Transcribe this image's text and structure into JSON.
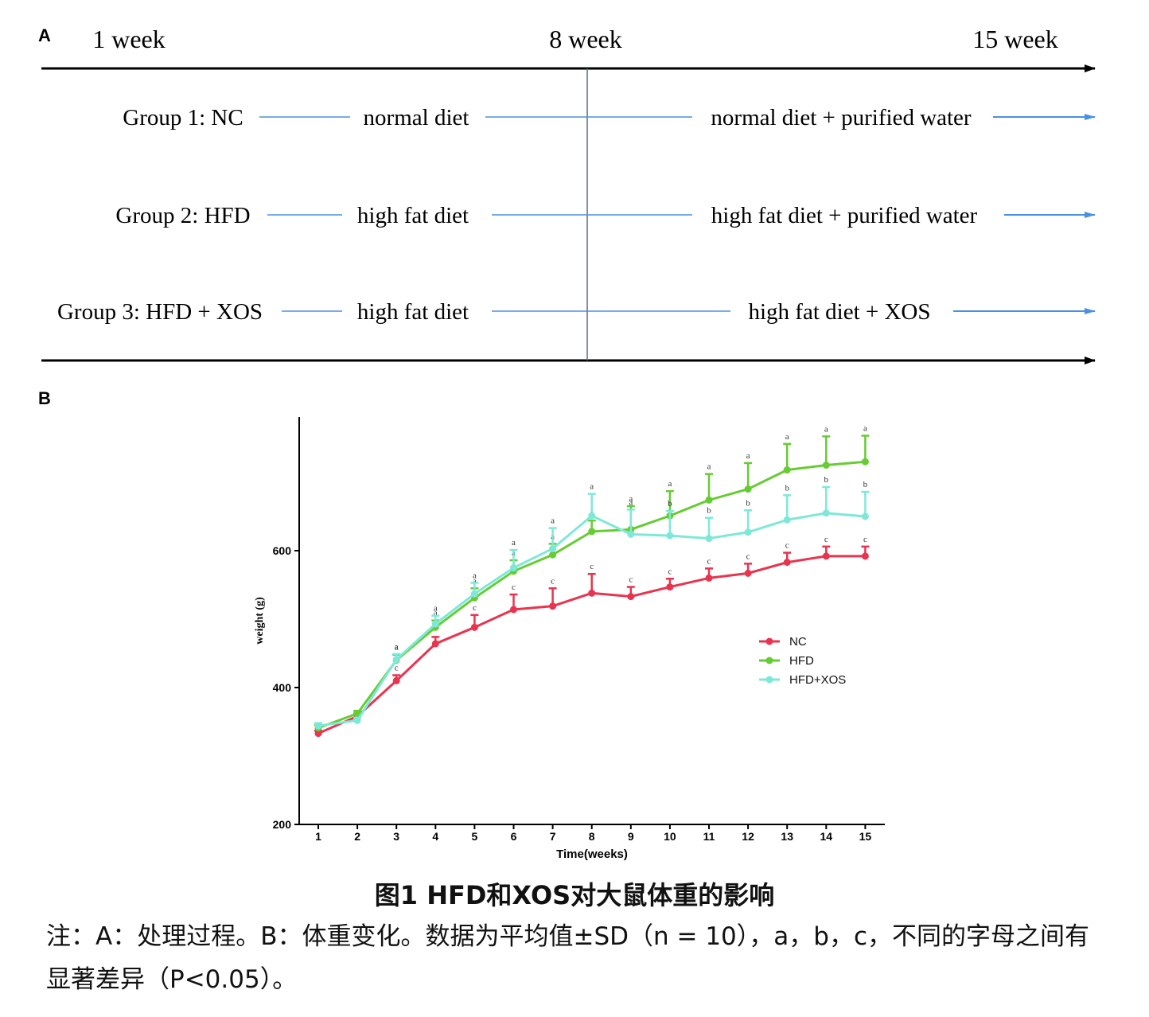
{
  "panel_a": {
    "label": "A",
    "timeline": [
      "1 week",
      "8 week",
      "15 week"
    ],
    "groups": [
      {
        "name": "Group 1: NC",
        "phase1": "normal diet",
        "phase2": "normal diet + purified water"
      },
      {
        "name": "Group 2: HFD",
        "phase1": "high fat diet",
        "phase2": "high fat diet + purified water"
      },
      {
        "name": "Group 3: HFD + XOS",
        "phase1": "high fat diet",
        "phase2": "high fat diet + XOS"
      }
    ],
    "colors": {
      "line": "#4a90e2",
      "axis": "#000000",
      "divider": "#5a6f80"
    }
  },
  "panel_b": {
    "label": "B"
  },
  "chart_data": {
    "type": "line",
    "xlabel": "Time(weeks)",
    "ylabel": "weight (g)",
    "x": [
      1,
      2,
      3,
      4,
      5,
      6,
      7,
      8,
      9,
      10,
      11,
      12,
      13,
      14,
      15
    ],
    "ylim": [
      200,
      800
    ],
    "yticks": [
      200,
      400,
      600
    ],
    "grid": false,
    "legend_position": "right",
    "series": [
      {
        "name": "NC",
        "color": "#e8344f",
        "values": [
          333,
          358,
          410,
          464,
          488,
          514,
          519,
          538,
          533,
          547,
          560,
          567,
          583,
          592,
          592
        ],
        "errors": [
          4,
          4,
          8,
          10,
          18,
          22,
          26,
          28,
          14,
          12,
          14,
          14,
          14,
          14,
          14
        ],
        "letters": [
          "",
          "",
          "c",
          "",
          "c",
          "c",
          "c",
          "c",
          "c",
          "c",
          "c",
          "c",
          "c",
          "c",
          "c"
        ]
      },
      {
        "name": "HFD",
        "color": "#66cc33",
        "values": [
          341,
          362,
          440,
          488,
          531,
          570,
          594,
          628,
          631,
          651,
          674,
          690,
          718,
          725,
          730
        ],
        "errors": [
          4,
          4,
          8,
          10,
          14,
          16,
          16,
          16,
          34,
          36,
          38,
          38,
          38,
          42,
          38
        ],
        "letters": [
          "",
          "",
          "a",
          "a",
          "a",
          "a",
          "a",
          "a",
          "a",
          "a",
          "a",
          "a",
          "a",
          "a",
          "a"
        ]
      },
      {
        "name": "HFD+XOS",
        "color": "#7ee8d8",
        "values": [
          344,
          352,
          441,
          493,
          537,
          575,
          603,
          651,
          624,
          622,
          618,
          627,
          645,
          655,
          650
        ],
        "errors": [
          4,
          4,
          8,
          12,
          16,
          26,
          30,
          32,
          36,
          36,
          30,
          32,
          36,
          38,
          36
        ],
        "letters": [
          "",
          "",
          "a",
          "a",
          "a",
          "a",
          "a",
          "a",
          "a",
          "b",
          "b",
          "b",
          "b",
          "b",
          "b"
        ]
      }
    ]
  },
  "caption": {
    "title": "图1 HFD和XOS对大鼠体重的影响",
    "note": "注：A：处理过程。B：体重变化。数据为平均值±SD（n = 10），a，b，c，不同的字母之间有显著差异（P<0.05）。"
  }
}
